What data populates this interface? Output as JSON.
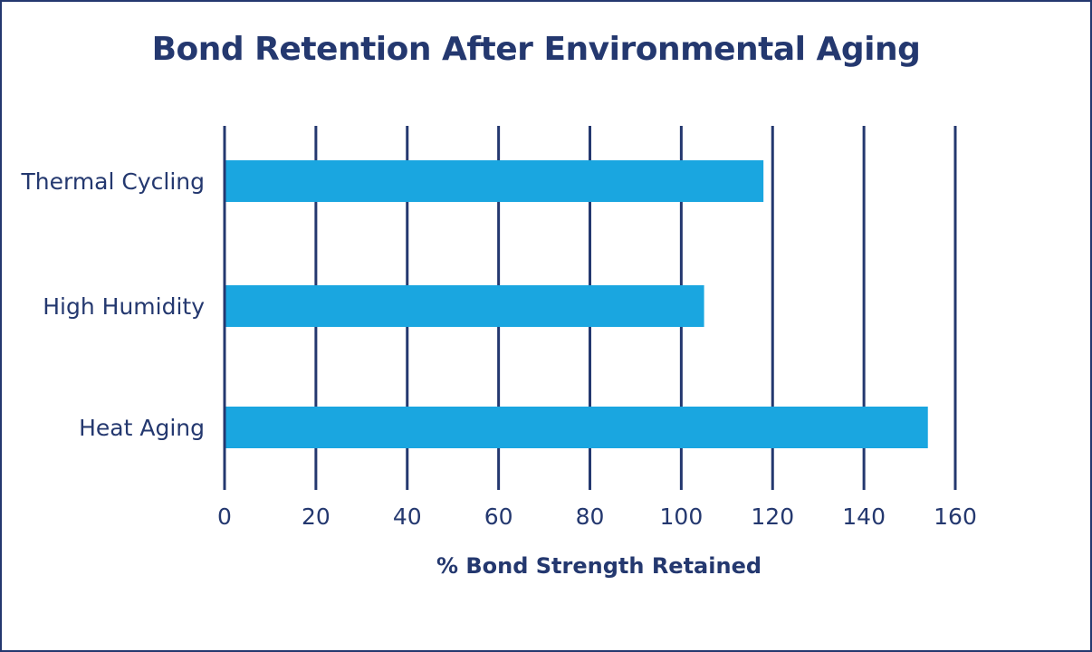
{
  "chart_data": {
    "type": "bar",
    "orientation": "horizontal",
    "title": "Bond Retention After Environmental Aging",
    "xlabel": "% Bond Strength Retained",
    "ylabel": "",
    "categories": [
      "Thermal Cycling",
      "High Humidity",
      "Heat Aging"
    ],
    "values": [
      118,
      105,
      154
    ],
    "xlim": [
      0,
      160
    ],
    "xticks": [
      "0",
      "20",
      "40",
      "60",
      "80",
      "100",
      "120",
      "140",
      "160"
    ],
    "grid": "vertical",
    "legend": "none",
    "colors": {
      "bar": "#1aa6e0",
      "text": "#24386f",
      "grid": "#24386f"
    }
  }
}
